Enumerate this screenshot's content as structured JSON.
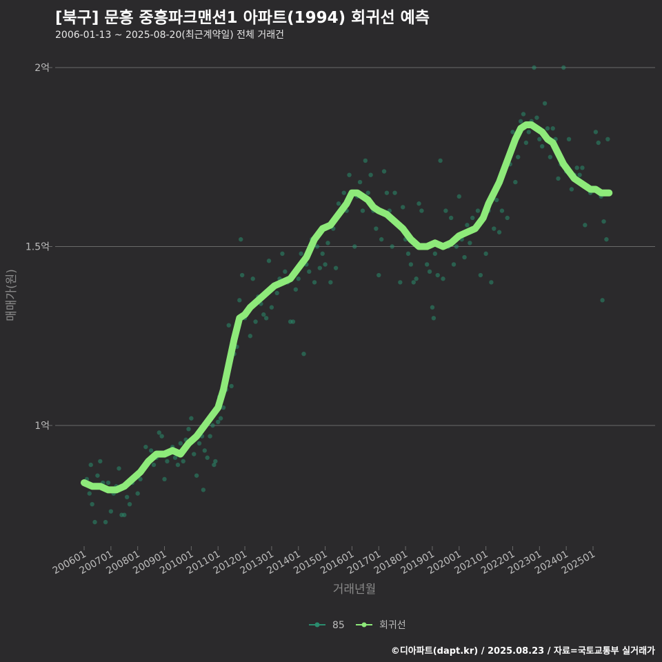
{
  "header": {
    "title": "[북구] 문흥 중흥파크맨션1 아파트(1994) 회귀선 예측",
    "subtitle": "2006-01-13 ~ 2025-08-20(최근계약일) 전체 거래건"
  },
  "caption": "©디아파트(dapt.kr) / 2025.08.23 / 자료=국토교통부 실거래가",
  "colors": {
    "background": "#2b2a2c",
    "grid": "#6a6a6a",
    "points": "#2a8c6e",
    "curve": "#8eea7a",
    "legend_point": "#2a8c6e"
  },
  "chart_data": {
    "type": "scatter",
    "title": "[북구] 문흥 중흥파크맨션1 아파트(1994) 회귀선 예측",
    "xlabel": "거래년월",
    "ylabel": "매매가(원)",
    "xlim": [
      2006.0,
      2026.0
    ],
    "ylim": [
      0.66,
      2.04
    ],
    "y_unit": "억",
    "y_ticks": [
      {
        "value": 1.0,
        "label": "1억"
      },
      {
        "value": 1.5,
        "label": "1.5억"
      },
      {
        "value": 2.0,
        "label": "2억"
      }
    ],
    "x_ticks": [
      {
        "value": 2006,
        "label": "200601"
      },
      {
        "value": 2007,
        "label": "200701"
      },
      {
        "value": 2008,
        "label": "200801"
      },
      {
        "value": 2009,
        "label": "200901"
      },
      {
        "value": 2010,
        "label": "201001"
      },
      {
        "value": 2011,
        "label": "201101"
      },
      {
        "value": 2012,
        "label": "201201"
      },
      {
        "value": 2013,
        "label": "201301"
      },
      {
        "value": 2014,
        "label": "201401"
      },
      {
        "value": 2015,
        "label": "201501"
      },
      {
        "value": 2016,
        "label": "201601"
      },
      {
        "value": 2017,
        "label": "201701"
      },
      {
        "value": 2018,
        "label": "201801"
      },
      {
        "value": 2019,
        "label": "201901"
      },
      {
        "value": 2020,
        "label": "202001"
      },
      {
        "value": 2021,
        "label": "202101"
      },
      {
        "value": 2022,
        "label": "202201"
      },
      {
        "value": 2023,
        "label": "202301"
      },
      {
        "value": 2024,
        "label": "202401"
      },
      {
        "value": 2025,
        "label": "202501"
      }
    ],
    "legend": [
      {
        "name": "85",
        "kind": "points"
      },
      {
        "name": "회귀선",
        "kind": "curve"
      }
    ],
    "series": [
      {
        "name": "85",
        "kind": "points",
        "points": [
          [
            2006.1,
            0.85
          ],
          [
            2006.2,
            0.81
          ],
          [
            2006.25,
            0.89
          ],
          [
            2006.3,
            0.78
          ],
          [
            2006.4,
            0.73
          ],
          [
            2006.5,
            0.86
          ],
          [
            2006.6,
            0.9
          ],
          [
            2006.7,
            0.84
          ],
          [
            2006.8,
            0.73
          ],
          [
            2006.9,
            0.84
          ],
          [
            2007.0,
            0.76
          ],
          [
            2007.1,
            0.81
          ],
          [
            2007.2,
            0.83
          ],
          [
            2007.3,
            0.88
          ],
          [
            2007.4,
            0.75
          ],
          [
            2007.5,
            0.75
          ],
          [
            2007.6,
            0.8
          ],
          [
            2007.7,
            0.78
          ],
          [
            2007.8,
            0.84
          ],
          [
            2007.9,
            0.86
          ],
          [
            2008.0,
            0.81
          ],
          [
            2008.1,
            0.85
          ],
          [
            2008.2,
            0.88
          ],
          [
            2008.3,
            0.94
          ],
          [
            2008.4,
            0.9
          ],
          [
            2008.5,
            0.93
          ],
          [
            2008.6,
            0.89
          ],
          [
            2008.7,
            0.91
          ],
          [
            2008.8,
            0.98
          ],
          [
            2008.9,
            0.97
          ],
          [
            2009.0,
            0.85
          ],
          [
            2009.1,
            0.9
          ],
          [
            2009.2,
            0.93
          ],
          [
            2009.3,
            0.94
          ],
          [
            2009.4,
            0.91
          ],
          [
            2009.5,
            0.89
          ],
          [
            2009.6,
            0.95
          ],
          [
            2009.7,
            0.9
          ],
          [
            2009.8,
            0.96
          ],
          [
            2009.9,
            0.99
          ],
          [
            2010.0,
            1.02
          ],
          [
            2010.1,
            0.92
          ],
          [
            2010.2,
            0.86
          ],
          [
            2010.3,
            0.95
          ],
          [
            2010.4,
            0.97
          ],
          [
            2010.45,
            0.82
          ],
          [
            2010.5,
            0.93
          ],
          [
            2010.6,
            0.91
          ],
          [
            2010.7,
            0.97
          ],
          [
            2010.8,
            1.0
          ],
          [
            2010.85,
            0.89
          ],
          [
            2010.9,
            0.9
          ],
          [
            2011.0,
            1.01
          ],
          [
            2011.05,
            1.08
          ],
          [
            2011.1,
            1.02
          ],
          [
            2011.2,
            1.05
          ],
          [
            2011.3,
            1.1
          ],
          [
            2011.4,
            1.28
          ],
          [
            2011.5,
            1.11
          ],
          [
            2011.6,
            1.2
          ],
          [
            2011.7,
            1.22
          ],
          [
            2011.8,
            1.35
          ],
          [
            2011.85,
            1.52
          ],
          [
            2011.9,
            1.42
          ],
          [
            2012.0,
            1.3
          ],
          [
            2012.1,
            1.32
          ],
          [
            2012.2,
            1.25
          ],
          [
            2012.3,
            1.41
          ],
          [
            2012.4,
            1.29
          ],
          [
            2012.5,
            1.36
          ],
          [
            2012.6,
            1.34
          ],
          [
            2012.7,
            1.31
          ],
          [
            2012.8,
            1.3
          ],
          [
            2012.9,
            1.46
          ],
          [
            2013.0,
            1.33
          ],
          [
            2013.1,
            1.39
          ],
          [
            2013.2,
            1.37
          ],
          [
            2013.3,
            1.41
          ],
          [
            2013.4,
            1.48
          ],
          [
            2013.5,
            1.43
          ],
          [
            2013.6,
            1.4
          ],
          [
            2013.7,
            1.29
          ],
          [
            2013.8,
            1.29
          ],
          [
            2013.9,
            1.38
          ],
          [
            2014.0,
            1.41
          ],
          [
            2014.1,
            1.48
          ],
          [
            2014.2,
            1.2
          ],
          [
            2014.3,
            1.45
          ],
          [
            2014.4,
            1.43
          ],
          [
            2014.5,
            1.52
          ],
          [
            2014.6,
            1.4
          ],
          [
            2014.7,
            1.5
          ],
          [
            2014.8,
            1.44
          ],
          [
            2014.9,
            1.48
          ],
          [
            2015.0,
            1.45
          ],
          [
            2015.1,
            1.51
          ],
          [
            2015.2,
            1.4
          ],
          [
            2015.3,
            1.55
          ],
          [
            2015.4,
            1.44
          ],
          [
            2015.5,
            1.62
          ],
          [
            2015.6,
            1.6
          ],
          [
            2015.7,
            1.65
          ],
          [
            2015.8,
            1.6
          ],
          [
            2015.9,
            1.7
          ],
          [
            2016.0,
            1.65
          ],
          [
            2016.1,
            1.5
          ],
          [
            2016.2,
            1.64
          ],
          [
            2016.3,
            1.68
          ],
          [
            2016.4,
            1.6
          ],
          [
            2016.5,
            1.74
          ],
          [
            2016.6,
            1.65
          ],
          [
            2016.7,
            1.7
          ],
          [
            2016.8,
            1.6
          ],
          [
            2016.9,
            1.55
          ],
          [
            2017.0,
            1.42
          ],
          [
            2017.1,
            1.52
          ],
          [
            2017.2,
            1.71
          ],
          [
            2017.3,
            1.65
          ],
          [
            2017.4,
            1.6
          ],
          [
            2017.5,
            1.5
          ],
          [
            2017.6,
            1.65
          ],
          [
            2017.7,
            1.56
          ],
          [
            2017.8,
            1.4
          ],
          [
            2017.9,
            1.61
          ],
          [
            2018.0,
            1.52
          ],
          [
            2018.1,
            1.48
          ],
          [
            2018.2,
            1.45
          ],
          [
            2018.3,
            1.4
          ],
          [
            2018.4,
            1.41
          ],
          [
            2018.5,
            1.62
          ],
          [
            2018.6,
            1.6
          ],
          [
            2018.7,
            1.5
          ],
          [
            2018.8,
            1.45
          ],
          [
            2018.9,
            1.43
          ],
          [
            2019.0,
            1.33
          ],
          [
            2019.05,
            1.3
          ],
          [
            2019.1,
            1.48
          ],
          [
            2019.2,
            1.42
          ],
          [
            2019.3,
            1.74
          ],
          [
            2019.4,
            1.41
          ],
          [
            2019.5,
            1.6
          ],
          [
            2019.6,
            1.5
          ],
          [
            2019.7,
            1.58
          ],
          [
            2019.8,
            1.45
          ],
          [
            2019.9,
            1.5
          ],
          [
            2020.0,
            1.64
          ],
          [
            2020.1,
            1.52
          ],
          [
            2020.2,
            1.47
          ],
          [
            2020.3,
            1.56
          ],
          [
            2020.4,
            1.51
          ],
          [
            2020.5,
            1.58
          ],
          [
            2020.6,
            1.55
          ],
          [
            2020.7,
            1.6
          ],
          [
            2020.8,
            1.42
          ],
          [
            2020.9,
            1.58
          ],
          [
            2021.0,
            1.48
          ],
          [
            2021.1,
            1.6
          ],
          [
            2021.2,
            1.4
          ],
          [
            2021.3,
            1.55
          ],
          [
            2021.4,
            1.63
          ],
          [
            2021.5,
            1.54
          ],
          [
            2021.6,
            1.6
          ],
          [
            2021.7,
            1.71
          ],
          [
            2021.8,
            1.58
          ],
          [
            2021.9,
            1.73
          ],
          [
            2022.0,
            1.82
          ],
          [
            2022.1,
            1.68
          ],
          [
            2022.2,
            1.75
          ],
          [
            2022.3,
            1.85
          ],
          [
            2022.4,
            1.87
          ],
          [
            2022.5,
            1.79
          ],
          [
            2022.6,
            1.82
          ],
          [
            2022.7,
            1.85
          ],
          [
            2022.8,
            2.0
          ],
          [
            2022.9,
            1.86
          ],
          [
            2023.0,
            1.8
          ],
          [
            2023.1,
            1.78
          ],
          [
            2023.2,
            1.9
          ],
          [
            2023.3,
            1.83
          ],
          [
            2023.4,
            1.75
          ],
          [
            2023.5,
            1.83
          ],
          [
            2023.6,
            1.8
          ],
          [
            2023.7,
            1.69
          ],
          [
            2023.8,
            1.73
          ],
          [
            2023.9,
            2.0
          ],
          [
            2024.0,
            1.71
          ],
          [
            2024.1,
            1.8
          ],
          [
            2024.2,
            1.66
          ],
          [
            2024.3,
            1.7
          ],
          [
            2024.4,
            1.72
          ],
          [
            2024.5,
            1.7
          ],
          [
            2024.6,
            1.72
          ],
          [
            2024.7,
            1.56
          ],
          [
            2024.8,
            1.67
          ],
          [
            2024.9,
            1.65
          ],
          [
            2025.0,
            1.66
          ],
          [
            2025.1,
            1.82
          ],
          [
            2025.2,
            1.79
          ],
          [
            2025.3,
            1.64
          ],
          [
            2025.35,
            1.35
          ],
          [
            2025.4,
            1.57
          ],
          [
            2025.5,
            1.52
          ],
          [
            2025.55,
            1.8
          ]
        ]
      },
      {
        "name": "회귀선",
        "kind": "curve",
        "points": [
          [
            2006.0,
            0.84
          ],
          [
            2006.3,
            0.83
          ],
          [
            2006.6,
            0.83
          ],
          [
            2006.9,
            0.82
          ],
          [
            2007.2,
            0.82
          ],
          [
            2007.5,
            0.83
          ],
          [
            2007.8,
            0.85
          ],
          [
            2008.1,
            0.87
          ],
          [
            2008.4,
            0.9
          ],
          [
            2008.7,
            0.92
          ],
          [
            2009.0,
            0.92
          ],
          [
            2009.3,
            0.93
          ],
          [
            2009.6,
            0.92
          ],
          [
            2009.9,
            0.95
          ],
          [
            2010.2,
            0.97
          ],
          [
            2010.5,
            1.0
          ],
          [
            2010.8,
            1.03
          ],
          [
            2011.0,
            1.05
          ],
          [
            2011.2,
            1.1
          ],
          [
            2011.4,
            1.17
          ],
          [
            2011.6,
            1.24
          ],
          [
            2011.8,
            1.3
          ],
          [
            2012.0,
            1.31
          ],
          [
            2012.2,
            1.33
          ],
          [
            2012.5,
            1.35
          ],
          [
            2012.8,
            1.37
          ],
          [
            2013.1,
            1.39
          ],
          [
            2013.4,
            1.4
          ],
          [
            2013.7,
            1.41
          ],
          [
            2014.0,
            1.44
          ],
          [
            2014.3,
            1.47
          ],
          [
            2014.6,
            1.52
          ],
          [
            2014.9,
            1.55
          ],
          [
            2015.2,
            1.56
          ],
          [
            2015.5,
            1.59
          ],
          [
            2015.8,
            1.62
          ],
          [
            2016.0,
            1.65
          ],
          [
            2016.2,
            1.65
          ],
          [
            2016.4,
            1.64
          ],
          [
            2016.6,
            1.63
          ],
          [
            2016.8,
            1.61
          ],
          [
            2017.0,
            1.6
          ],
          [
            2017.3,
            1.59
          ],
          [
            2017.6,
            1.57
          ],
          [
            2017.9,
            1.55
          ],
          [
            2018.2,
            1.52
          ],
          [
            2018.5,
            1.5
          ],
          [
            2018.8,
            1.5
          ],
          [
            2019.1,
            1.51
          ],
          [
            2019.4,
            1.5
          ],
          [
            2019.7,
            1.51
          ],
          [
            2020.0,
            1.53
          ],
          [
            2020.3,
            1.54
          ],
          [
            2020.6,
            1.55
          ],
          [
            2020.9,
            1.58
          ],
          [
            2021.1,
            1.62
          ],
          [
            2021.3,
            1.65
          ],
          [
            2021.5,
            1.68
          ],
          [
            2021.7,
            1.72
          ],
          [
            2021.9,
            1.76
          ],
          [
            2022.1,
            1.8
          ],
          [
            2022.3,
            1.83
          ],
          [
            2022.5,
            1.84
          ],
          [
            2022.7,
            1.84
          ],
          [
            2022.9,
            1.83
          ],
          [
            2023.1,
            1.82
          ],
          [
            2023.3,
            1.8
          ],
          [
            2023.5,
            1.79
          ],
          [
            2023.7,
            1.76
          ],
          [
            2023.9,
            1.73
          ],
          [
            2024.1,
            1.71
          ],
          [
            2024.3,
            1.69
          ],
          [
            2024.5,
            1.68
          ],
          [
            2024.7,
            1.67
          ],
          [
            2024.9,
            1.66
          ],
          [
            2025.1,
            1.66
          ],
          [
            2025.3,
            1.65
          ],
          [
            2025.6,
            1.65
          ]
        ]
      }
    ]
  }
}
